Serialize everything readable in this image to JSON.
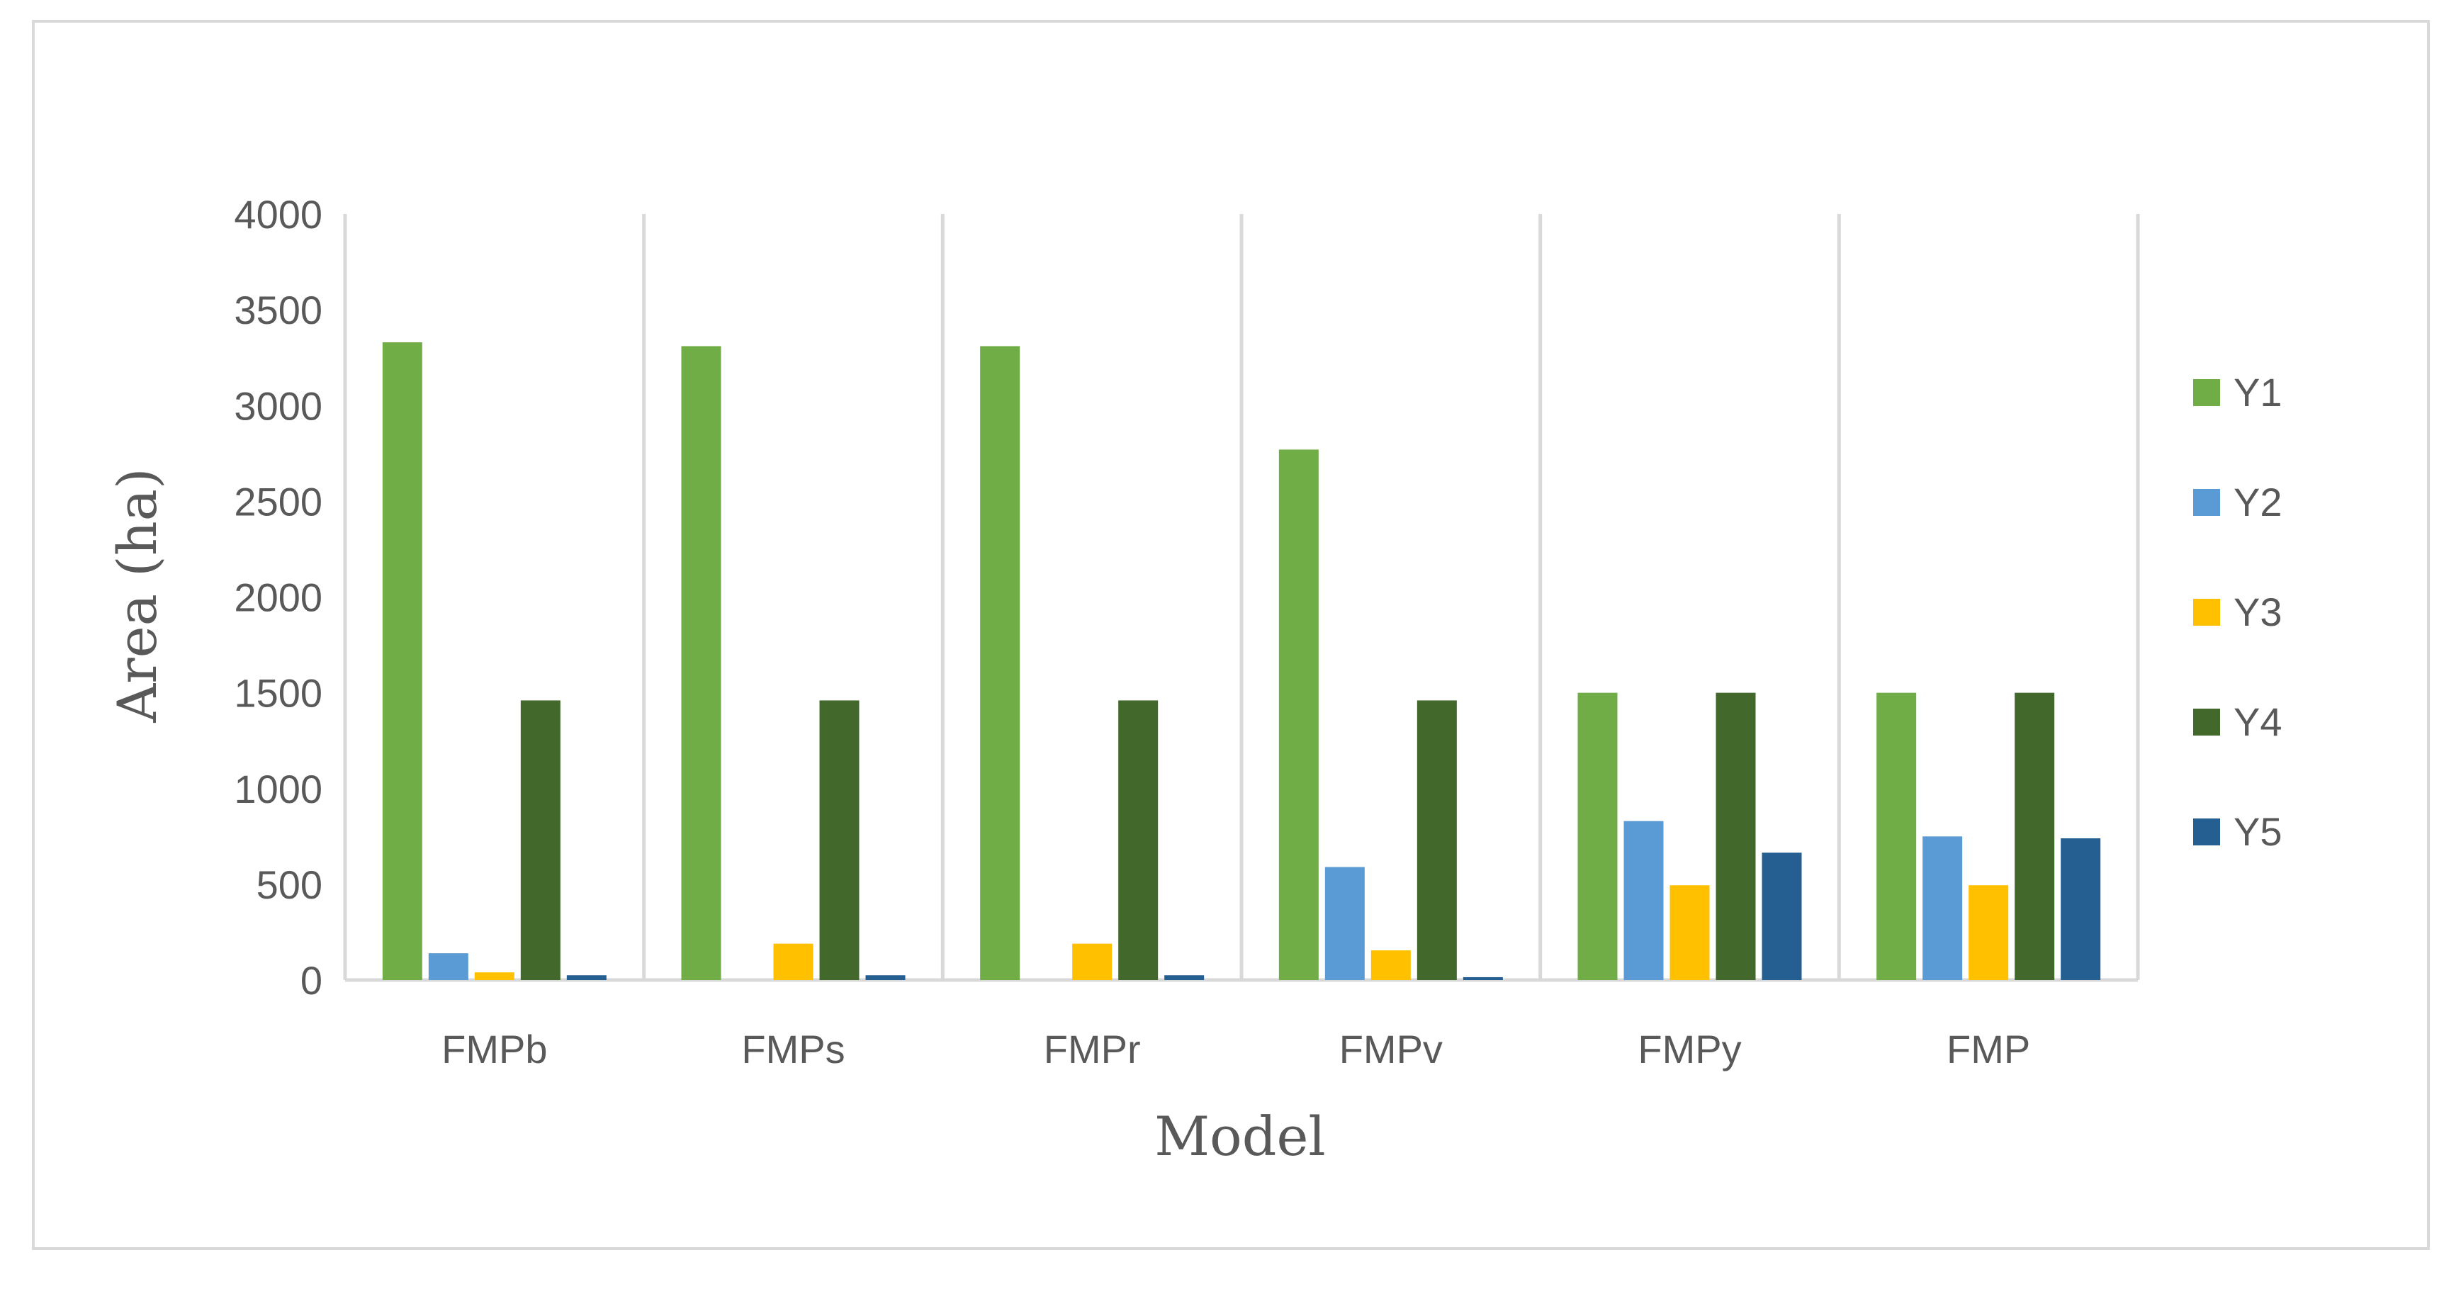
{
  "chart_data": {
    "type": "bar",
    "title": "",
    "xlabel": "Model",
    "ylabel": "Area (ha)",
    "categories": [
      "FMPb",
      "FMPs",
      "FMPr",
      "FMPv",
      "FMPy",
      "FMP"
    ],
    "ylim": [
      0,
      4000
    ],
    "yticks": [
      0,
      500,
      1000,
      1500,
      2000,
      2500,
      3000,
      3500,
      4000
    ],
    "grid": "vertical category separators",
    "legend_position": "right",
    "series": [
      {
        "name": "Y1",
        "color": "#70ad47",
        "values": [
          3330,
          3310,
          3310,
          2770,
          1500,
          1500
        ]
      },
      {
        "name": "Y2",
        "color": "#5b9bd5",
        "values": [
          140,
          0,
          0,
          590,
          830,
          750
        ]
      },
      {
        "name": "Y3",
        "color": "#ffc000",
        "values": [
          40,
          190,
          190,
          155,
          495,
          495
        ]
      },
      {
        "name": "Y4",
        "color": "#43682b",
        "values": [
          1460,
          1460,
          1460,
          1460,
          1500,
          1500
        ]
      },
      {
        "name": "Y5",
        "color": "#255e91",
        "values": [
          25,
          25,
          25,
          15,
          665,
          740
        ]
      }
    ]
  }
}
